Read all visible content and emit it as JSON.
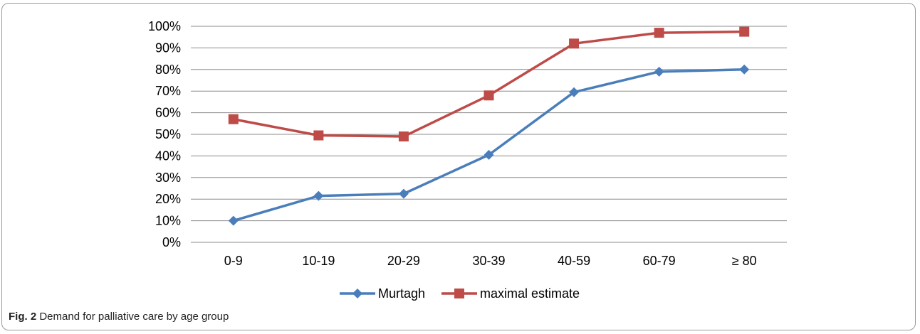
{
  "chart_data": {
    "type": "line",
    "categories": [
      "0-9",
      "10-19",
      "20-29",
      "30-39",
      "40-59",
      "60-79",
      "≥ 80"
    ],
    "series": [
      {
        "name": "Murtagh",
        "color": "#4a7ebb",
        "marker": "diamond",
        "values": [
          0.1,
          0.215,
          0.225,
          0.405,
          0.695,
          0.79,
          0.8
        ]
      },
      {
        "name": "maximal estimate",
        "color": "#be4b48",
        "marker": "square",
        "values": [
          0.57,
          0.495,
          0.49,
          0.68,
          0.92,
          0.97,
          0.975
        ]
      }
    ],
    "ylim": [
      0,
      1
    ],
    "yticks": [
      "0%",
      "10%",
      "20%",
      "30%",
      "40%",
      "50%",
      "60%",
      "70%",
      "80%",
      "90%",
      "100%"
    ],
    "grid": true,
    "legend": "bottom-center"
  },
  "caption": {
    "label": "Fig. 2",
    "text": "Demand for palliative care by age group"
  }
}
